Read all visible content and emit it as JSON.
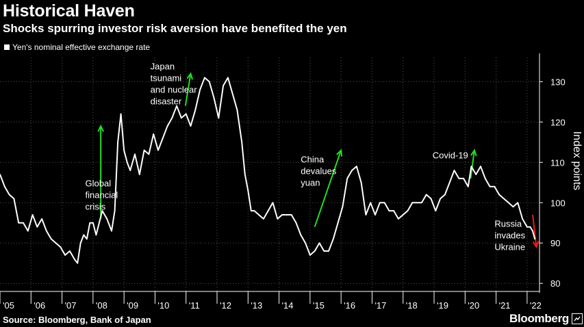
{
  "header": {
    "title": "Historical Haven",
    "subtitle": "Shocks spurring investor risk aversion have benefited the yen"
  },
  "footer": {
    "source": "Source: Bloomberg, Bank of Japan",
    "brand": "Bloomberg"
  },
  "colors": {
    "background": "#000000",
    "line": "#ffffff",
    "up_arrow": "#22dd22",
    "down_arrow": "#ee1c1c",
    "grid": "#555555"
  },
  "chart_data": {
    "type": "line",
    "title": "Historical Haven",
    "subtitle": "Shocks spurring investor risk aversion have benefited the yen",
    "ylabel": "Index points",
    "ylim": [
      78,
      136
    ],
    "xlim": [
      2005.0,
      2022.4
    ],
    "y_ticks": [
      80,
      90,
      100,
      110,
      120,
      130
    ],
    "x_ticks": [
      {
        "label": "'05",
        "year": 2005
      },
      {
        "label": "'06",
        "year": 2006
      },
      {
        "label": "'07",
        "year": 2007
      },
      {
        "label": "'08",
        "year": 2008
      },
      {
        "label": "'09",
        "year": 2009
      },
      {
        "label": "'10",
        "year": 2010
      },
      {
        "label": "'11",
        "year": 2011
      },
      {
        "label": "'12",
        "year": 2012
      },
      {
        "label": "'13",
        "year": 2013
      },
      {
        "label": "'14",
        "year": 2014
      },
      {
        "label": "'15",
        "year": 2015
      },
      {
        "label": "'16",
        "year": 2016
      },
      {
        "label": "'17",
        "year": 2017
      },
      {
        "label": "'18",
        "year": 2018
      },
      {
        "label": "'19",
        "year": 2019
      },
      {
        "label": "'20",
        "year": 2020
      },
      {
        "label": "'21",
        "year": 2021
      },
      {
        "label": "'22",
        "year": 2022
      }
    ],
    "grid": true,
    "legend_position": "top-left",
    "series": [
      {
        "name": "Yen's nominal effective exchange rate",
        "color": "#ffffff",
        "x": [
          2005.0,
          2005.15,
          2005.3,
          2005.45,
          2005.6,
          2005.75,
          2005.9,
          2006.05,
          2006.2,
          2006.35,
          2006.5,
          2006.65,
          2006.8,
          2006.95,
          2007.1,
          2007.25,
          2007.4,
          2007.5,
          2007.6,
          2007.7,
          2007.8,
          2007.9,
          2008.0,
          2008.1,
          2008.2,
          2008.3,
          2008.45,
          2008.6,
          2008.7,
          2008.8,
          2008.9,
          2009.0,
          2009.1,
          2009.2,
          2009.35,
          2009.5,
          2009.65,
          2009.8,
          2009.95,
          2010.1,
          2010.25,
          2010.4,
          2010.55,
          2010.7,
          2010.85,
          2011.0,
          2011.15,
          2011.3,
          2011.45,
          2011.6,
          2011.75,
          2011.9,
          2012.05,
          2012.2,
          2012.35,
          2012.5,
          2012.65,
          2012.8,
          2012.9,
          2013.0,
          2013.1,
          2013.2,
          2013.35,
          2013.5,
          2013.65,
          2013.8,
          2013.95,
          2014.1,
          2014.25,
          2014.4,
          2014.55,
          2014.7,
          2014.85,
          2015.0,
          2015.15,
          2015.3,
          2015.45,
          2015.6,
          2015.75,
          2015.9,
          2016.05,
          2016.2,
          2016.35,
          2016.5,
          2016.65,
          2016.8,
          2016.95,
          2017.1,
          2017.25,
          2017.4,
          2017.55,
          2017.7,
          2017.85,
          2018.0,
          2018.15,
          2018.3,
          2018.45,
          2018.6,
          2018.75,
          2018.9,
          2019.05,
          2019.2,
          2019.35,
          2019.5,
          2019.65,
          2019.8,
          2019.95,
          2020.1,
          2020.2,
          2020.35,
          2020.5,
          2020.65,
          2020.8,
          2020.95,
          2021.1,
          2021.25,
          2021.4,
          2021.55,
          2021.7,
          2021.85,
          2022.0,
          2022.1,
          2022.18,
          2022.25
        ],
        "values": [
          107,
          104,
          102,
          101,
          95,
          95,
          93,
          97,
          94,
          96,
          93,
          91,
          90,
          89,
          87,
          88,
          86,
          85,
          90,
          92,
          91,
          95,
          95,
          92,
          95,
          98,
          96,
          93,
          98,
          115,
          122,
          113,
          110,
          108,
          112,
          107,
          113,
          112,
          117,
          113,
          116,
          119,
          121,
          124,
          121,
          122,
          119,
          123,
          128,
          131,
          130,
          126,
          121,
          129,
          131,
          127,
          123,
          115,
          107,
          103,
          98,
          98,
          97,
          96,
          98,
          100,
          96,
          97,
          97,
          97,
          95,
          92,
          90,
          87,
          88,
          90,
          88,
          88,
          91,
          95,
          99,
          106,
          108,
          109,
          105,
          97,
          100,
          97,
          100,
          100,
          98,
          98,
          96,
          97,
          98,
          100,
          100,
          100,
          102,
          101,
          98,
          101,
          102,
          105,
          108,
          106,
          106,
          104,
          109,
          107,
          109,
          106,
          104,
          104,
          102,
          101,
          100,
          99,
          100,
          96,
          94,
          94,
          93,
          91
        ]
      }
    ],
    "annotations": [
      {
        "text": [
          "Global",
          "financial",
          "crisis"
        ],
        "year": 2007.75,
        "value": 104,
        "arrow": {
          "from": [
            2008.25,
            96
          ],
          "to": [
            2008.25,
            119
          ],
          "color": "#22dd22"
        }
      },
      {
        "text": [
          "Japan",
          "tsunami",
          "and nuclear",
          "disaster"
        ],
        "year": 2009.85,
        "value": 133,
        "arrow": {
          "from": [
            2010.98,
            124
          ],
          "to": [
            2011.15,
            132
          ],
          "color": "#22dd22"
        }
      },
      {
        "text": [
          "China",
          "devalues",
          "yuan"
        ],
        "year": 2014.7,
        "value": 110,
        "arrow": {
          "from": [
            2015.15,
            94
          ],
          "to": [
            2016.0,
            113
          ],
          "color": "#22dd22"
        }
      },
      {
        "text": [
          "Covid-19"
        ],
        "year": 2018.95,
        "value": 111,
        "arrow": {
          "from": [
            2020.18,
            106
          ],
          "to": [
            2020.3,
            113
          ],
          "color": "#22dd22"
        }
      },
      {
        "text": [
          "Russia",
          "invades",
          "Ukraine"
        ],
        "year": 2020.95,
        "value": 94,
        "arrow": {
          "from": [
            2022.18,
            97
          ],
          "to": [
            2022.3,
            89
          ],
          "color": "#ee1c1c"
        }
      }
    ]
  }
}
